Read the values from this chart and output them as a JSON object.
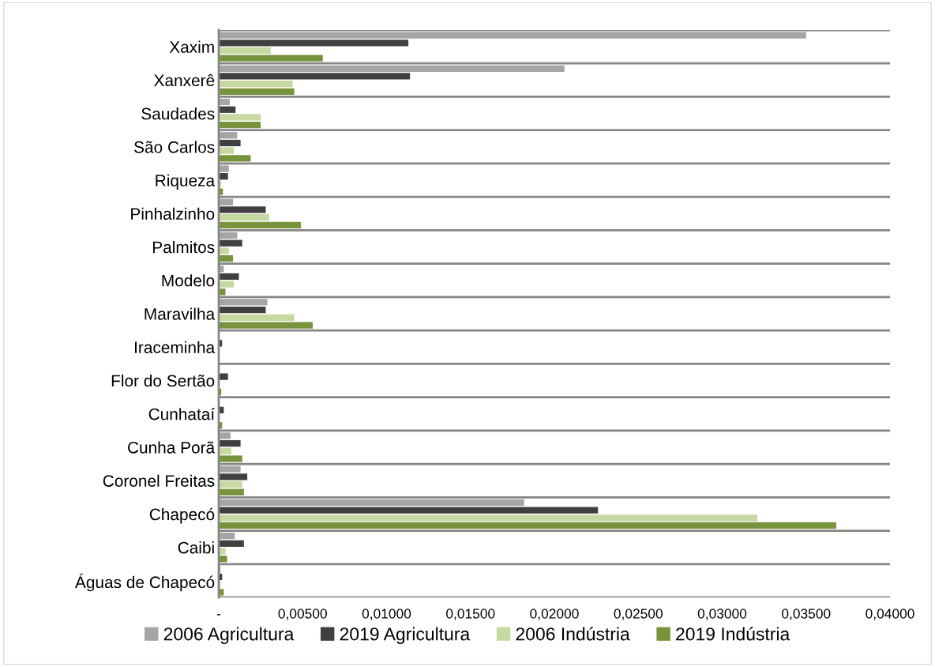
{
  "chart_data": {
    "type": "bar",
    "orientation": "horizontal",
    "categories": [
      "Xaxim",
      "Xanxerê",
      "Saudades",
      "São Carlos",
      "Riqueza",
      "Pinhalzinho",
      "Palmitos",
      "Modelo",
      "Maravilha",
      "Iraceminha",
      "Flor do Sertão",
      "Cunhataí",
      "Cunha Porã",
      "Coronel Freitas",
      "Chapecó",
      "Caibi",
      "Águas de Chapecó"
    ],
    "series": [
      {
        "name": "2006 Agricultura",
        "color": "#a5a5a5",
        "values": [
          0.035,
          0.0206,
          0.00066,
          0.0011,
          0.0006,
          0.00085,
          0.0011,
          0.0003,
          0.0029,
          0,
          0,
          0,
          0.0007,
          0.0013,
          0.0182,
          0.00095,
          0.0001
        ]
      },
      {
        "name": "2019 Agricultura",
        "color": "#404040",
        "values": [
          0.0113,
          0.0114,
          0.001,
          0.0013,
          0.00055,
          0.0028,
          0.0014,
          0.0012,
          0.0028,
          0.0002,
          0.00055,
          0.0003,
          0.0013,
          0.0017,
          0.0226,
          0.0015,
          0.0002
        ]
      },
      {
        "name": "2006 Indústria",
        "color": "#c5d9a0",
        "values": [
          0.0031,
          0.0044,
          0.0025,
          0.0009,
          0.00015,
          0.003,
          0.0006,
          0.0009,
          0.0045,
          0,
          0,
          0,
          0.00075,
          0.0014,
          0.0321,
          0.0004,
          0.0001
        ]
      },
      {
        "name": "2019 Indústria",
        "color": "#77933c",
        "values": [
          0.0062,
          0.0045,
          0.0025,
          0.0019,
          0.00025,
          0.0049,
          0.00085,
          0.0004,
          0.0056,
          0,
          0.00015,
          0.0002,
          0.0014,
          0.0015,
          0.0368,
          0.0005,
          0.0003
        ]
      }
    ],
    "xlim": [
      0,
      0.04
    ],
    "xticks": [
      {
        "value": 0,
        "label": "-"
      },
      {
        "value": 0.005,
        "label": "0,00500"
      },
      {
        "value": 0.01,
        "label": "0,01000"
      },
      {
        "value": 0.015,
        "label": "0,01500"
      },
      {
        "value": 0.02,
        "label": "0,02000"
      },
      {
        "value": 0.025,
        "label": "0,02500"
      },
      {
        "value": 0.03,
        "label": "0,03000"
      },
      {
        "value": 0.035,
        "label": "0,03500"
      },
      {
        "value": 0.04,
        "label": "0,04000"
      }
    ],
    "grid": "y",
    "legend": "bottom"
  }
}
